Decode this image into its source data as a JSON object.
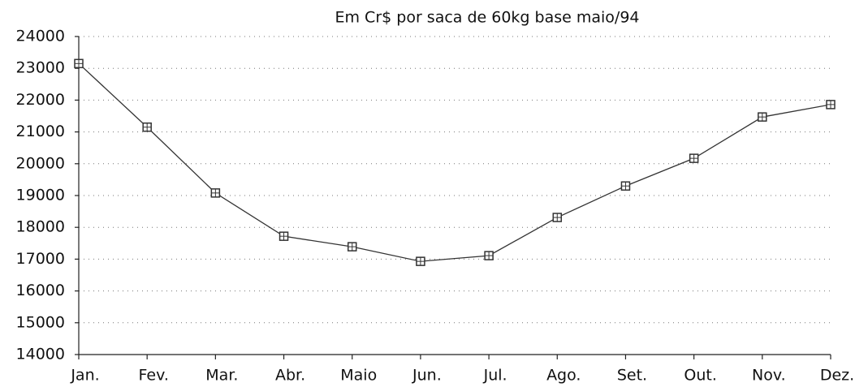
{
  "chart_data": {
    "type": "line",
    "title": "Em Cr$ por saca de 60kg base maio/94",
    "categories": [
      "Jan.",
      "Fev.",
      "Mar.",
      "Abr.",
      "Maio",
      "Jun.",
      "Jul.",
      "Ago.",
      "Set.",
      "Out.",
      "Nov.",
      "Dez."
    ],
    "values": [
      23150,
      21150,
      19080,
      17720,
      17390,
      16930,
      17110,
      18310,
      19300,
      20170,
      21470,
      21860
    ],
    "color": "#333333",
    "ylim": [
      14000,
      24000
    ],
    "yticks": [
      14000,
      15000,
      16000,
      17000,
      18000,
      19000,
      20000,
      21000,
      22000,
      23000,
      24000
    ],
    "grid": true
  }
}
